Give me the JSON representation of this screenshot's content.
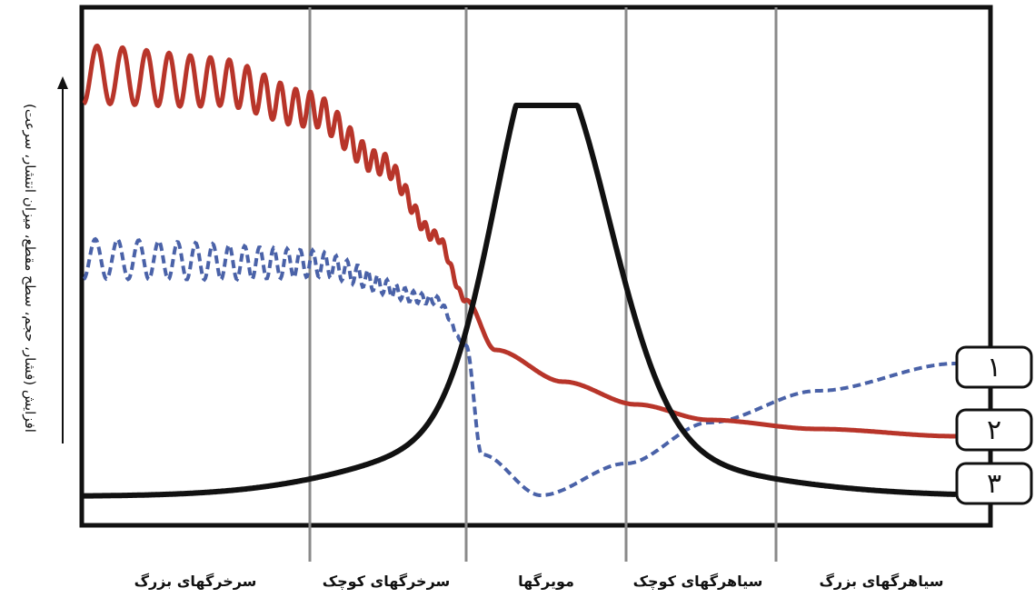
{
  "diagram": {
    "y_axis_label": "افزایش (فشار، حجم، سطح مقطع، میزان انتشار، سرعت)",
    "segments": [
      {
        "id": "large-arteries",
        "label": "سرخرگهای بزرگ"
      },
      {
        "id": "small-arteries",
        "label": "سرخرگهای کوچک"
      },
      {
        "id": "capillaries",
        "label": "مویرگها"
      },
      {
        "id": "small-veins",
        "label": "سیاهرگهای کوچک"
      },
      {
        "id": "large-veins",
        "label": "سیاهرگهای بزرگ"
      }
    ],
    "curves": [
      {
        "id": "curve-1",
        "number": "۱",
        "style": "dashed",
        "color": "#4a62a8"
      },
      {
        "id": "curve-2",
        "number": "۲",
        "style": "solid-oscillating",
        "color": "#b8352a"
      },
      {
        "id": "curve-3",
        "number": "۳",
        "style": "solid-bell",
        "color": "#111111"
      }
    ],
    "colors": {
      "frame": "#111111",
      "divider": "#8a8a8a",
      "background": "#ffffff"
    }
  }
}
